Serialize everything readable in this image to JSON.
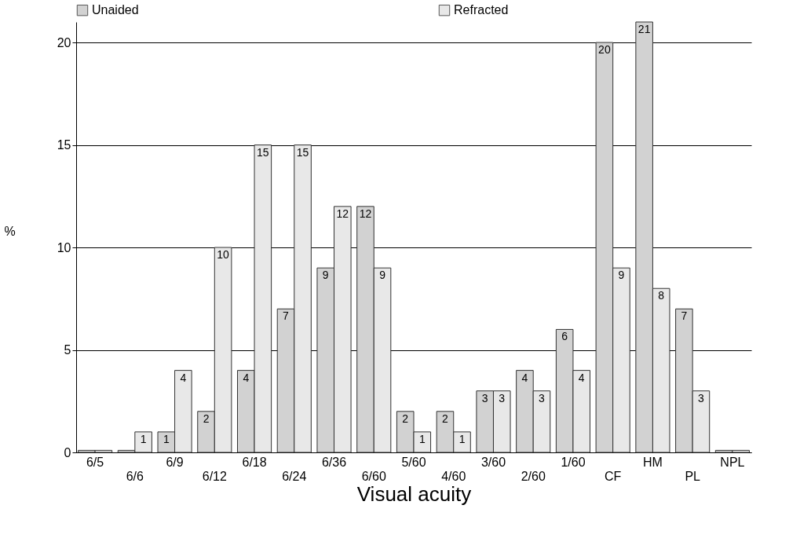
{
  "chart_data": {
    "type": "bar",
    "xlabel": "Visual acuity",
    "ylabel": "%",
    "categories": [
      "6/5",
      "6/6",
      "6/9",
      "6/12",
      "6/18",
      "6/24",
      "6/36",
      "6/60",
      "5/60",
      "4/60",
      "3/60",
      "2/60",
      "1/60",
      "CF",
      "HM",
      "PL",
      "NPL"
    ],
    "series": [
      {
        "name": "Unaided",
        "color": "#d2d2d2",
        "values": [
          0.1,
          0.1,
          1,
          2,
          4,
          7,
          9,
          12,
          2,
          2,
          3,
          4,
          6,
          20,
          21,
          7,
          0.1
        ],
        "value_labels": [
          null,
          null,
          "1",
          "2",
          "4",
          "7",
          "9",
          "12",
          "2",
          "2",
          "3",
          "4",
          "6",
          "20",
          "21",
          "7",
          null
        ]
      },
      {
        "name": "Refracted",
        "color": "#e8e8e8",
        "values": [
          0.1,
          1,
          4,
          10,
          15,
          15,
          12,
          9,
          1,
          1,
          3,
          3,
          4,
          9,
          8,
          3,
          0.1
        ],
        "value_labels": [
          null,
          "1",
          "4",
          "10",
          "15",
          "15",
          "12",
          "9",
          "1",
          "1",
          "3",
          "3",
          "4",
          "9",
          "8",
          "3",
          null
        ]
      }
    ],
    "ylim": [
      0,
      21
    ],
    "yticks": [
      0,
      5,
      10,
      15,
      20
    ],
    "grid": "y",
    "legend": "top"
  }
}
